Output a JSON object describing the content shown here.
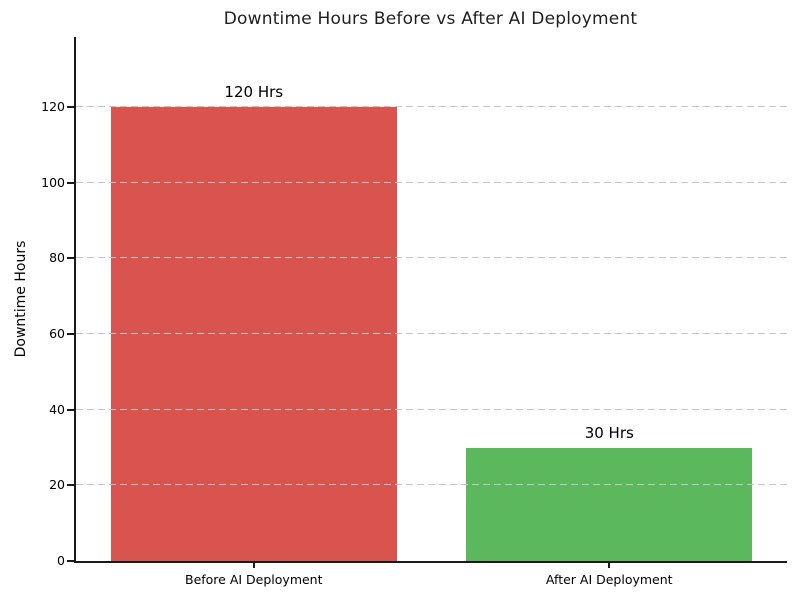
{
  "chart_data": {
    "type": "bar",
    "title": "Downtime Hours Before vs After AI Deployment",
    "xlabel": "",
    "ylabel": "Downtime Hours",
    "categories": [
      "Before AI Deployment",
      "After AI Deployment"
    ],
    "values": [
      120,
      30
    ],
    "value_labels": [
      "120 Hrs",
      "30 Hrs"
    ],
    "bar_colors": [
      "#d9534f",
      "#5cb85c"
    ],
    "yticks": [
      0,
      20,
      40,
      60,
      80,
      100,
      120
    ],
    "ylim": [
      0,
      138.5
    ],
    "grid": "horizontal-dashed",
    "grid_color": "#c6c6c6",
    "legend": "none",
    "background_color": "#ffffff"
  }
}
